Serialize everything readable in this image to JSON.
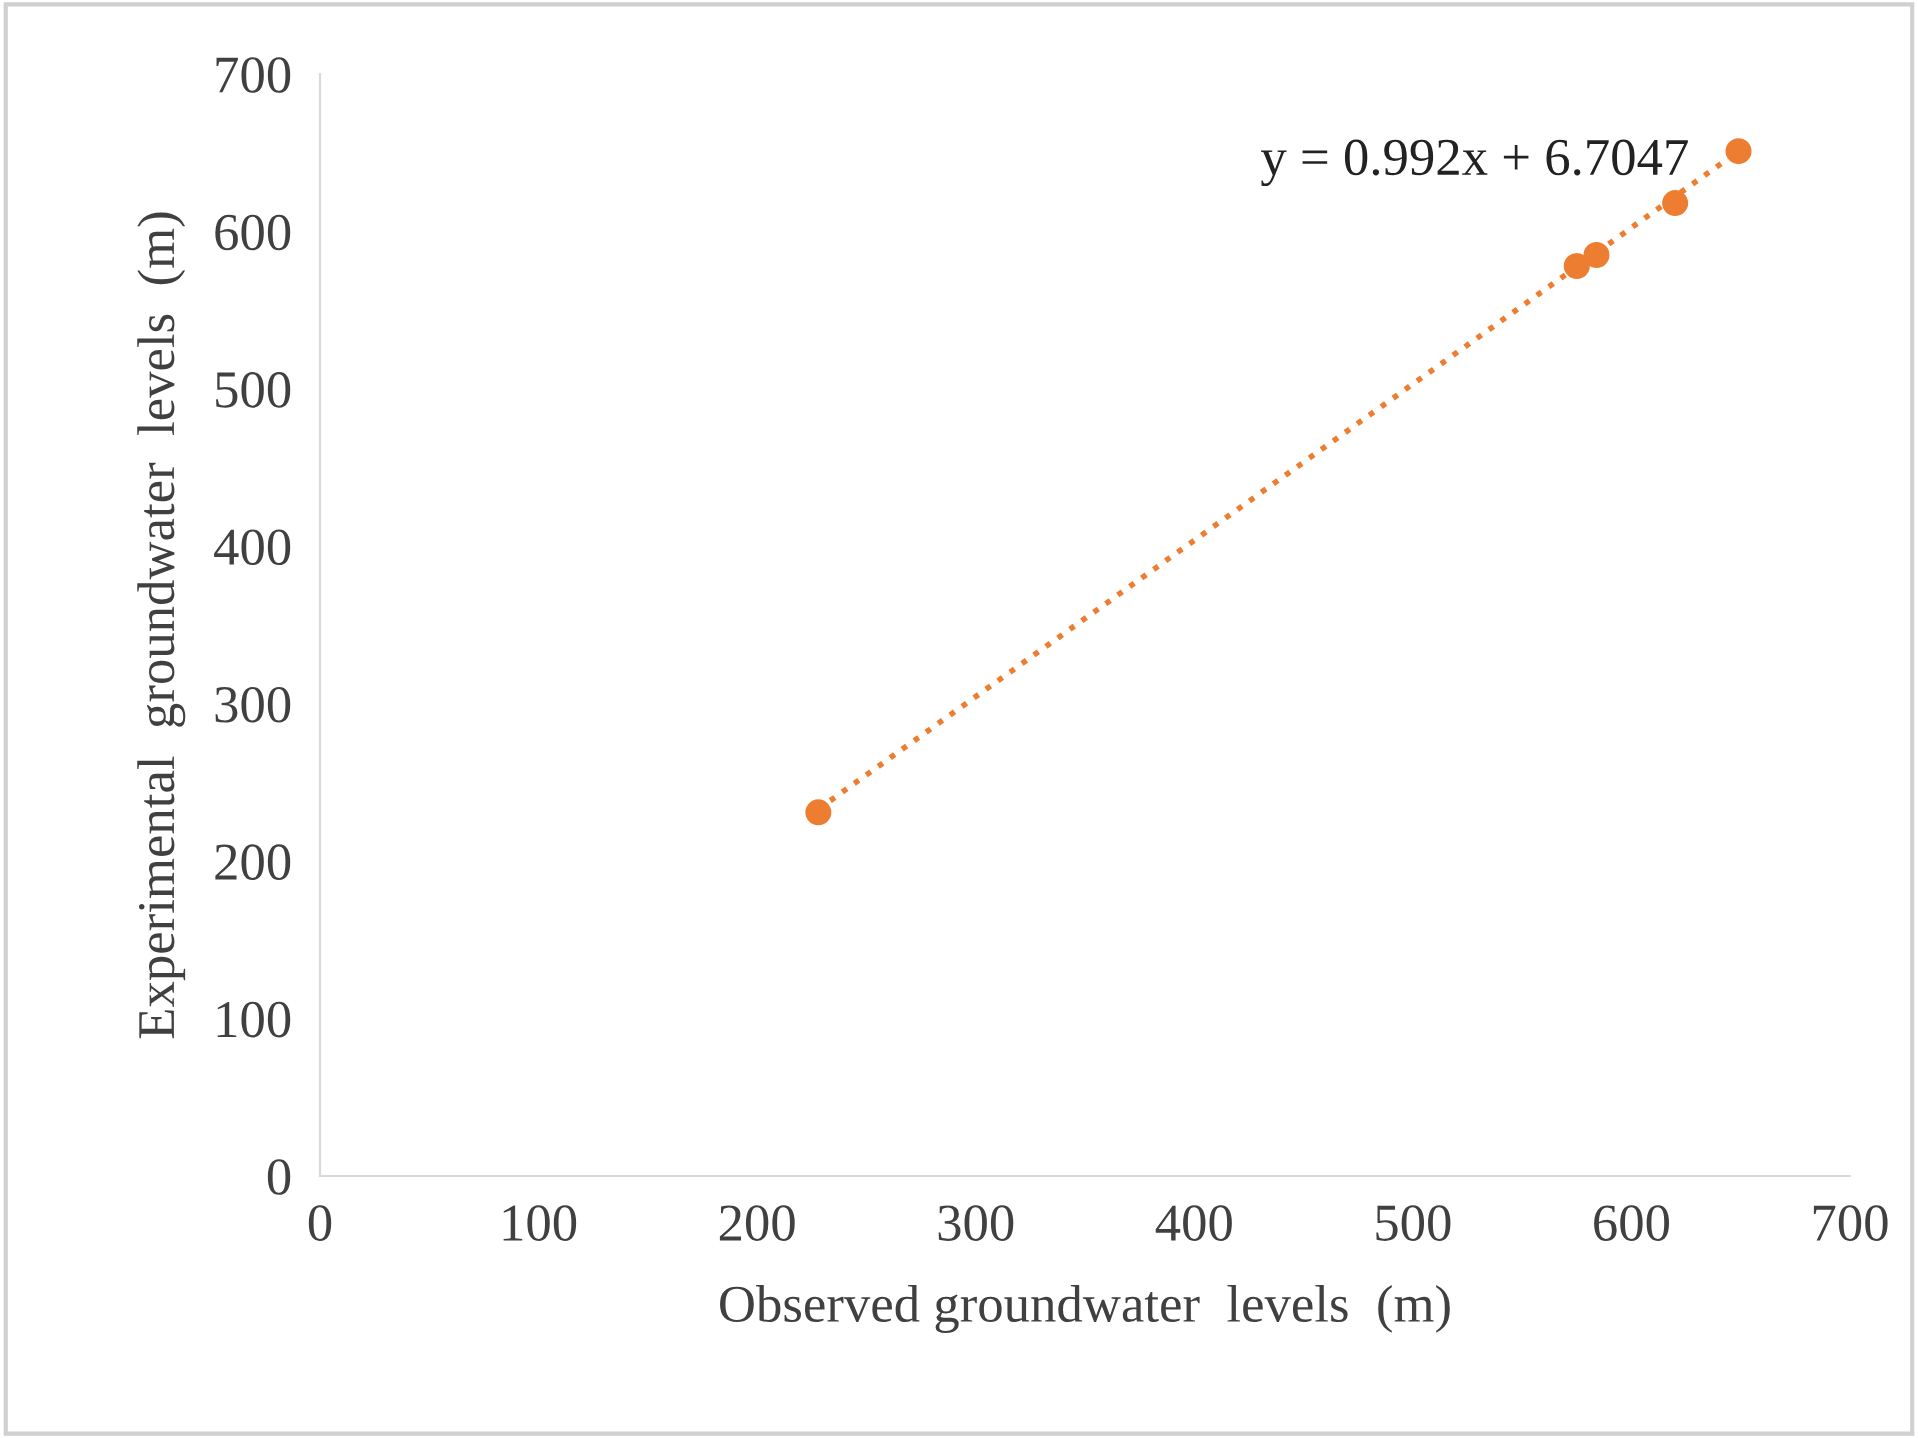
{
  "chart_data": {
    "type": "scatter",
    "xlabel": "Observed groundwater  levels  (m)",
    "ylabel": "Experimental  groundwater  levels  (m)",
    "x": [
      228,
      575,
      584,
      620,
      649
    ],
    "series": [
      {
        "color": "#ed7d31",
        "values": [
          231,
          578,
          585,
          618,
          651
        ],
        "marker": "circle"
      },
      {
        "type": "line",
        "color": "#ed7d31",
        "x": [
          228,
          649
        ],
        "values": [
          233,
          651
        ],
        "line_style": "dotted",
        "marker": "none"
      }
    ],
    "annotations": [
      "y = 0.992x + 6.7047"
    ],
    "xlim": [
      0,
      700
    ],
    "xticks": [
      0,
      100,
      200,
      300,
      400,
      500,
      600,
      700
    ],
    "ylim": [
      0,
      700
    ],
    "yticks": [
      0,
      100,
      200,
      300,
      400,
      500,
      600,
      700
    ],
    "grid": false,
    "legend": false
  }
}
